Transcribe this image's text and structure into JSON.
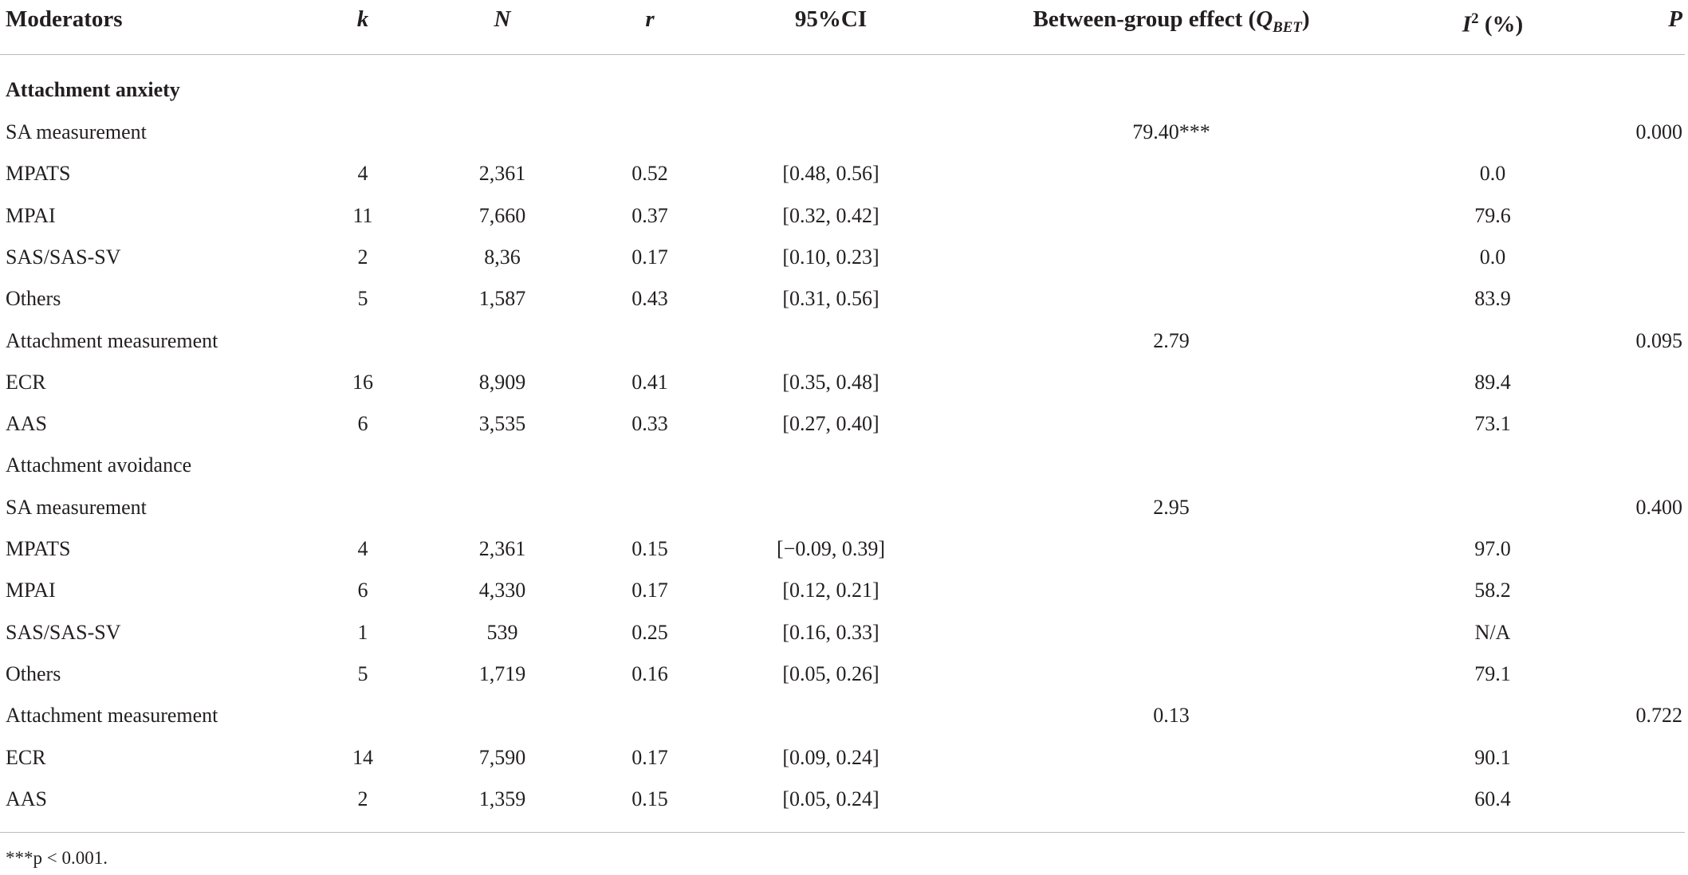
{
  "table": {
    "header": [
      "Moderators",
      "k",
      "N",
      "r",
      "95%CI",
      {
        "text": "Between-group effect (",
        "symbol": "Q",
        "subscript": "BET",
        "close": ")"
      },
      {
        "symbol": "I",
        "superscript": "2",
        "text": " (%)"
      },
      "P"
    ],
    "group_label": "Attachment anxiety",
    "rows": [
      [
        "SA measurement",
        null,
        null,
        null,
        null,
        "79.40***",
        null,
        "0.000"
      ],
      [
        "MPATS",
        "4",
        "2,361",
        "0.52",
        "[0.48, 0.56]",
        null,
        "0.0",
        null
      ],
      [
        "MPAI",
        "11",
        "7,660",
        "0.37",
        "[0.32, 0.42]",
        null,
        "79.6",
        null
      ],
      [
        "SAS/SAS-SV",
        "2",
        "8,36",
        "0.17",
        "[0.10, 0.23]",
        null,
        "0.0",
        null
      ],
      [
        "Others",
        "5",
        "1,587",
        "0.43",
        "[0.31, 0.56]",
        null,
        "83.9",
        null
      ],
      [
        "Attachment measurement",
        null,
        null,
        null,
        null,
        "2.79",
        null,
        "0.095"
      ],
      [
        "ECR",
        "16",
        "8,909",
        "0.41",
        "[0.35, 0.48]",
        null,
        "89.4",
        null
      ],
      [
        "AAS",
        "6",
        "3,535",
        "0.33",
        "[0.27, 0.40]",
        null,
        "73.1",
        null
      ],
      [
        "Attachment avoidance",
        null,
        null,
        null,
        null,
        null,
        null,
        null
      ],
      [
        "SA measurement",
        null,
        null,
        null,
        null,
        "2.95",
        null,
        "0.400"
      ],
      [
        "MPATS",
        "4",
        "2,361",
        "0.15",
        "[−0.09, 0.39]",
        null,
        "97.0",
        null
      ],
      [
        "MPAI",
        "6",
        "4,330",
        "0.17",
        "[0.12, 0.21]",
        null,
        "58.2",
        null
      ],
      [
        "SAS/SAS-SV",
        "1",
        "539",
        "0.25",
        "[0.16, 0.33]",
        null,
        "N/A",
        null
      ],
      [
        "Others",
        "5",
        "1,719",
        "0.16",
        "[0.05, 0.26]",
        null,
        "79.1",
        null
      ],
      [
        "Attachment measurement",
        null,
        null,
        null,
        null,
        "0.13",
        null,
        "0.722"
      ],
      [
        "ECR",
        "14",
        "7,590",
        "0.17",
        "[0.09, 0.24]",
        null,
        "90.1",
        null
      ],
      [
        "AAS",
        "2",
        "1,359",
        "0.15",
        "[0.05, 0.24]",
        null,
        "60.4",
        null
      ]
    ],
    "footnote": "***p < 0.001."
  }
}
